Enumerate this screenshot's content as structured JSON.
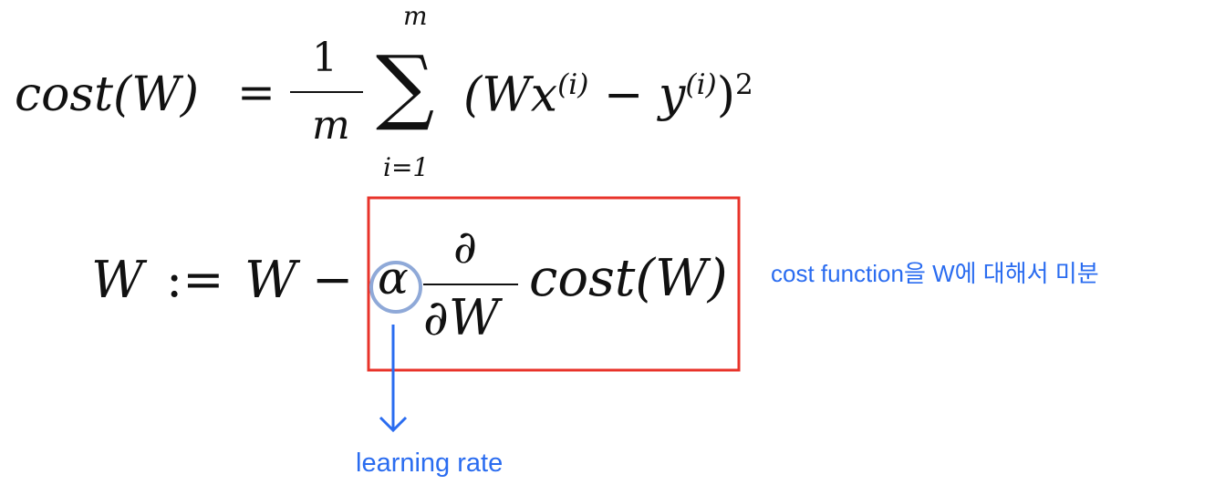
{
  "equation1": {
    "lhs": "cost(W)",
    "equals": "=",
    "numerator": "1",
    "denominator": "m",
    "sum_symbol": "∑",
    "sum_upper": "m",
    "sum_lower": "i=1",
    "term_open": "(Wx",
    "superscript_i1": "(i)",
    "minus": "−",
    "term_y": "y",
    "superscript_i2": "(i)",
    "term_close": ")",
    "power": "2"
  },
  "equation2": {
    "lhs": "W",
    "assign": ":=",
    "w": "W",
    "minus": "−",
    "alpha": "α",
    "partial_num": "∂",
    "partial_den": "∂W",
    "cost": "cost(W)"
  },
  "annotations": {
    "box_label": "cost function을 W에 대해서 미분",
    "alpha_label": "learning rate"
  },
  "colors": {
    "box": "#e8332a",
    "circle": "#8fa9d8",
    "annotation": "#2a6cf0"
  }
}
